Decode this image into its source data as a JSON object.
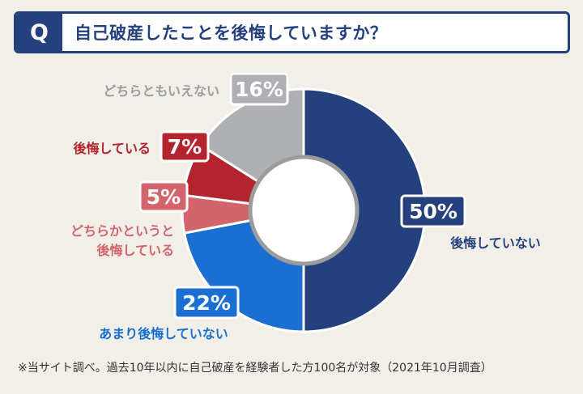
{
  "question": {
    "badge": "Q",
    "text": "自己破産したことを後悔していますか？"
  },
  "chart_data": {
    "type": "pie",
    "donut": true,
    "slices": [
      {
        "label": "後悔していない",
        "value": 50,
        "value_label": "50%",
        "color": "#25417d"
      },
      {
        "label": "あまり後悔していない",
        "value": 22,
        "value_label": "22%",
        "color": "#1b6fd1"
      },
      {
        "label": "どちらかというと後悔している",
        "value": 5,
        "value_label": "5%",
        "color": "#d4646c"
      },
      {
        "label": "後悔している",
        "value": 7,
        "value_label": "7%",
        "color": "#b3242e"
      },
      {
        "label": "どちらともいえない",
        "value": 16,
        "value_label": "16%",
        "color": "#aeb0b4"
      }
    ]
  },
  "footnote": "※当サイト調べ。過去10年以内に自己破産を経験者した方100名が対象（2021年10月調査）"
}
